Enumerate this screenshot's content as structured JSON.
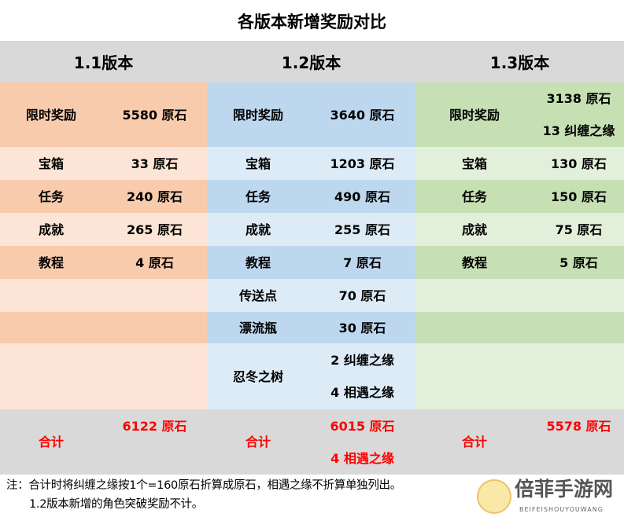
{
  "title": "各版本新增奖励对比",
  "columns": [
    {
      "version": "1.1版本",
      "colors": {
        "dark": "#f8cbad",
        "light": "#fce4d6"
      },
      "rows": [
        {
          "label": "限时奖励",
          "values": [
            "5580 原石"
          ]
        },
        {
          "label": "宝箱",
          "values": [
            "33 原石"
          ]
        },
        {
          "label": "任务",
          "values": [
            "240 原石"
          ]
        },
        {
          "label": "成就",
          "values": [
            "265 原石"
          ]
        },
        {
          "label": "教程",
          "values": [
            "4 原石"
          ]
        },
        {
          "label": "",
          "values": []
        },
        {
          "label": "",
          "values": []
        },
        {
          "label": "",
          "values": []
        }
      ],
      "total": {
        "label": "合计",
        "values": [
          "6122 原石"
        ]
      }
    },
    {
      "version": "1.2版本",
      "colors": {
        "dark": "#bdd7ee",
        "light": "#ddebf7"
      },
      "rows": [
        {
          "label": "限时奖励",
          "values": [
            "3640 原石"
          ]
        },
        {
          "label": "宝箱",
          "values": [
            "1203 原石"
          ]
        },
        {
          "label": "任务",
          "values": [
            "490 原石"
          ]
        },
        {
          "label": "成就",
          "values": [
            "255 原石"
          ]
        },
        {
          "label": "教程",
          "values": [
            "7 原石"
          ]
        },
        {
          "label": "传送点",
          "values": [
            "70 原石"
          ]
        },
        {
          "label": "漂流瓶",
          "values": [
            "30 原石"
          ]
        },
        {
          "label": "忍冬之树",
          "values": [
            "2 纠缠之缘",
            "4 相遇之缘"
          ]
        }
      ],
      "total": {
        "label": "合计",
        "values": [
          "6015 原石",
          "4 相遇之缘"
        ]
      }
    },
    {
      "version": "1.3版本",
      "colors": {
        "dark": "#c6e0b4",
        "light": "#e2efda"
      },
      "rows": [
        {
          "label": "限时奖励",
          "values": [
            "3138 原石",
            "13 纠缠之缘"
          ]
        },
        {
          "label": "宝箱",
          "values": [
            "130 原石"
          ]
        },
        {
          "label": "任务",
          "values": [
            "150 原石"
          ]
        },
        {
          "label": "成就",
          "values": [
            "75 原石"
          ]
        },
        {
          "label": "教程",
          "values": [
            "5 原石"
          ]
        },
        {
          "label": "",
          "values": []
        },
        {
          "label": "",
          "values": []
        },
        {
          "label": "",
          "values": []
        }
      ],
      "total": {
        "label": "合计",
        "values": [
          "5578 原石"
        ]
      }
    }
  ],
  "total_color": "#d9d9d9",
  "total_text_color": "#ff0000",
  "note": {
    "line1": "注：合计时将纠缠之缘按1个=160原石折算成原石，相遇之缘不折算单独列出。",
    "line2": "1.2版本新增的角色突破奖励不计。"
  },
  "watermark": {
    "name": "倍菲手游网",
    "sub": "BEIFEISHOUYOUWANG"
  }
}
